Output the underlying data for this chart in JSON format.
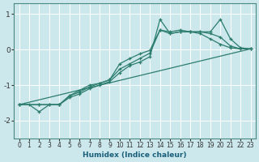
{
  "xlabel": "Humidex (Indice chaleur)",
  "bg_color": "#cce8ec",
  "line_color": "#2d7d6e",
  "grid_color": "#b0d8dc",
  "xlim": [
    -0.5,
    23.5
  ],
  "ylim": [
    -2.5,
    1.3
  ],
  "yticks": [
    -2,
    -1,
    0,
    1
  ],
  "xticks": [
    0,
    1,
    2,
    3,
    4,
    5,
    6,
    7,
    8,
    9,
    10,
    11,
    12,
    13,
    14,
    15,
    16,
    17,
    18,
    19,
    20,
    21,
    22,
    23
  ],
  "line1_x": [
    0,
    1,
    2,
    3,
    4,
    5,
    6,
    7,
    8,
    9,
    10,
    11,
    12,
    13,
    14,
    15,
    16,
    17,
    18,
    19,
    20,
    21,
    22,
    23
  ],
  "line1_y": [
    -1.55,
    -1.55,
    -1.75,
    -1.55,
    -1.55,
    -1.35,
    -1.25,
    -1.1,
    -1.0,
    -0.9,
    -0.65,
    -0.45,
    -0.35,
    -0.2,
    0.85,
    0.45,
    0.5,
    0.5,
    0.45,
    0.3,
    0.15,
    0.05,
    0.02,
    0.02
  ],
  "line2_x": [
    0,
    2,
    3,
    4,
    5,
    6,
    7,
    8,
    9,
    10,
    11,
    12,
    13,
    14,
    15,
    16,
    17,
    18,
    19,
    20,
    21,
    22,
    23
  ],
  "line2_y": [
    -1.55,
    -1.55,
    -1.55,
    -1.55,
    -1.3,
    -1.2,
    -1.05,
    -0.95,
    -0.85,
    -0.55,
    -0.4,
    -0.25,
    -0.1,
    0.55,
    0.45,
    0.5,
    0.5,
    0.5,
    0.45,
    0.35,
    0.1,
    0.02,
    0.02
  ],
  "line3_x": [
    0,
    2,
    4,
    5,
    6,
    7,
    8,
    9,
    10,
    11,
    12,
    13,
    14,
    15,
    16,
    17,
    18,
    19,
    20,
    21,
    22,
    23
  ],
  "line3_y": [
    -1.55,
    -1.55,
    -1.55,
    -1.3,
    -1.15,
    -1.0,
    -0.95,
    -0.85,
    -0.4,
    -0.25,
    -0.12,
    -0.02,
    0.55,
    0.5,
    0.55,
    0.5,
    0.5,
    0.5,
    0.85,
    0.3,
    0.05,
    0.02
  ],
  "line4_x": [
    0,
    23
  ],
  "line4_y": [
    -1.55,
    0.02
  ]
}
